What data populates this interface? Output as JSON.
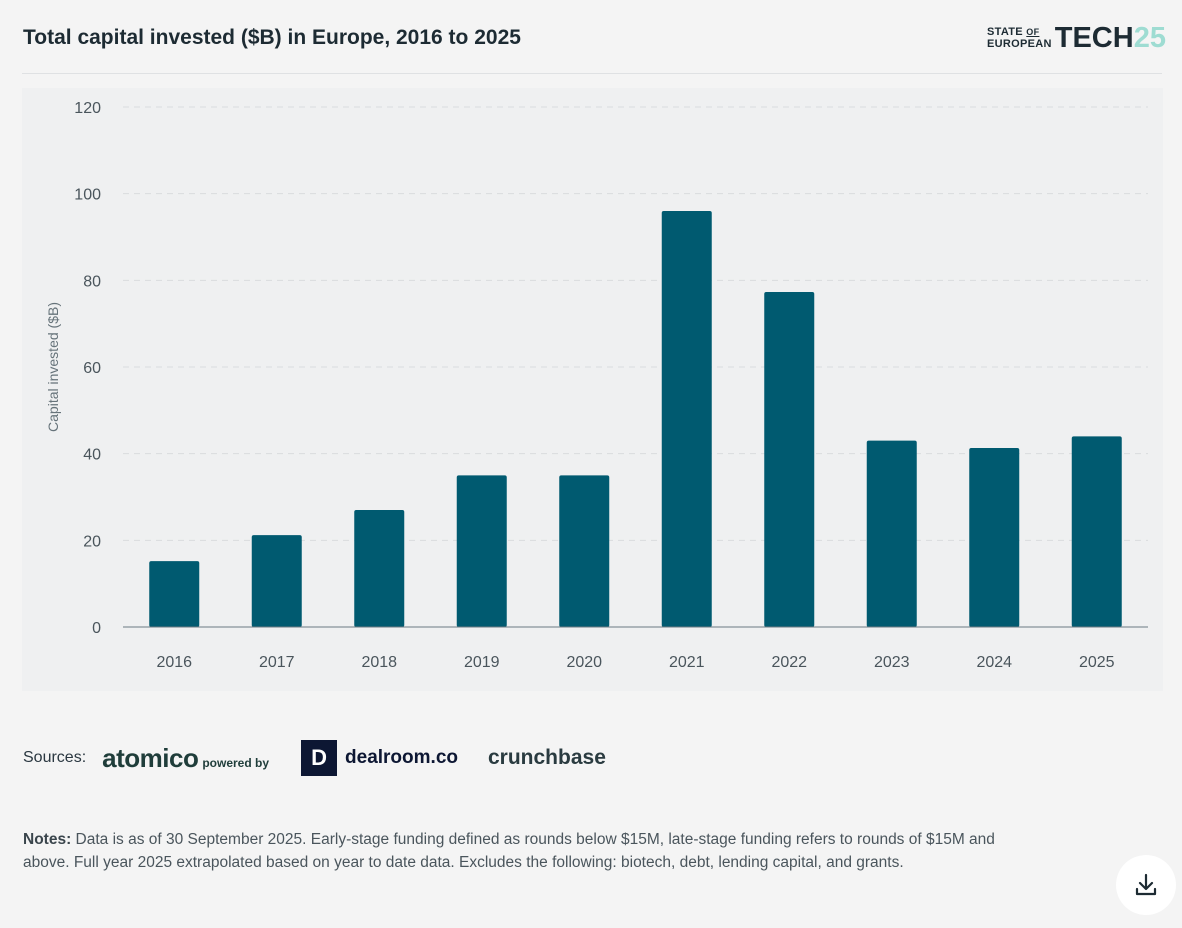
{
  "header": {
    "title": "Total capital invested ($B) in Europe, 2016 to 2025",
    "logo": {
      "line1": "STATE",
      "of": "OF",
      "line2": "EUROPEAN",
      "tech": "TECH",
      "num": "25"
    }
  },
  "chart_data": {
    "type": "bar",
    "title": "Total capital invested ($B) in Europe, 2016 to 2025",
    "xlabel": "",
    "ylabel": "Capital invested ($B)",
    "ylim": [
      0,
      120
    ],
    "yticks": [
      0,
      20,
      40,
      60,
      80,
      100,
      120
    ],
    "categories": [
      "2016",
      "2017",
      "2018",
      "2019",
      "2020",
      "2021",
      "2022",
      "2023",
      "2024",
      "2025"
    ],
    "values": [
      15.2,
      21.2,
      27,
      35,
      35,
      96,
      77.3,
      43,
      41.3,
      44
    ],
    "grid": true,
    "color": "#005a70"
  },
  "sources": {
    "label": "Sources:",
    "atomico": "atomico",
    "powered": "powered by",
    "dealroom_mark": "D",
    "dealroom": "dealroom.co",
    "crunchbase": "crunchbase"
  },
  "notes": {
    "label": "Notes:",
    "text": " Data is as of 30 September 2025. Early-stage funding defined as rounds below $15M, late-stage funding refers to rounds of $15M and above. Full year 2025 extrapolated based on year to date data. Excludes the following: biotech, debt, lending capital, and grants."
  }
}
